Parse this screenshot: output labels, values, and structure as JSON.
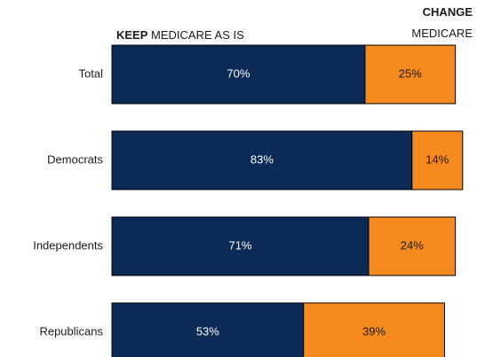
{
  "chart_data": {
    "type": "bar",
    "stacked": true,
    "orientation": "horizontal",
    "categories": [
      "Total",
      "Democrats",
      "Independents",
      "Republicans"
    ],
    "series": [
      {
        "name": "KEEP MEDICARE AS IS",
        "name_bold": "KEEP",
        "name_rest": " MEDICARE AS IS",
        "color": "#0c2a56",
        "text_color": "#ffffff",
        "values": [
          70,
          83,
          71,
          53
        ],
        "labels": [
          "70%",
          "83%",
          "71%",
          "53%"
        ]
      },
      {
        "name": "CHANGE MEDICARE",
        "name_bold": "CHANGE",
        "name_rest": "MEDICARE",
        "color": "#f58a1f",
        "text_color": "#1a1a1a",
        "values": [
          25,
          14,
          24,
          39
        ],
        "labels": [
          "25%",
          "14%",
          "24%",
          "39%"
        ]
      }
    ],
    "xlim": [
      0,
      100
    ],
    "grid": false,
    "legend": "top"
  }
}
